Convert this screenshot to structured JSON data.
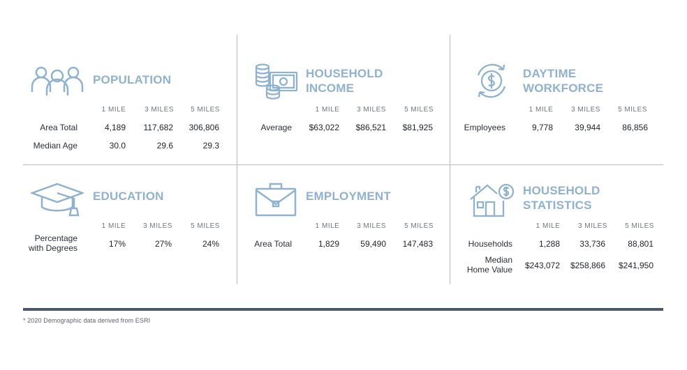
{
  "panels": {
    "population": {
      "title": "POPULATION",
      "icon": "people-group-icon",
      "columns": [
        "1 MILE",
        "3 MILES",
        "5 MILES"
      ],
      "rows": [
        {
          "label": "Area Total",
          "values": [
            "4,189",
            "117,682",
            "306,806"
          ]
        },
        {
          "label": "Median Age",
          "values": [
            "30.0",
            "29.6",
            "29.3"
          ]
        }
      ]
    },
    "household_income": {
      "title": "HOUSEHOLD\nINCOME",
      "icon": "coins-cash-icon",
      "columns": [
        "1 MILE",
        "3 MILES",
        "5 MILES"
      ],
      "rows": [
        {
          "label": "Average",
          "values": [
            "$63,022",
            "$86,521",
            "$81,925"
          ]
        }
      ]
    },
    "daytime_workforce": {
      "title": "DAYTIME\nWORKFORCE",
      "icon": "dollar-cycle-icon",
      "columns": [
        "1 MILE",
        "3 MILES",
        "5 MILES"
      ],
      "rows": [
        {
          "label": "Employees",
          "values": [
            "9,778",
            "39,944",
            "86,856"
          ]
        }
      ]
    },
    "education": {
      "title": "EDUCATION",
      "icon": "graduation-cap-icon",
      "columns": [
        "1 MILE",
        "3 MILES",
        "5 MILES"
      ],
      "rows": [
        {
          "label": "Percentage\nwith Degrees",
          "values": [
            "17%",
            "27%",
            "24%"
          ]
        }
      ]
    },
    "employment": {
      "title": "EMPLOYMENT",
      "icon": "briefcase-icon",
      "columns": [
        "1 MILE",
        "3 MILES",
        "5 MILES"
      ],
      "rows": [
        {
          "label": "Area Total",
          "values": [
            "1,829",
            "59,490",
            "147,483"
          ]
        }
      ]
    },
    "household_statistics": {
      "title": "HOUSEHOLD\nSTATISTICS",
      "icon": "house-dollar-icon",
      "columns": [
        "1 MILE",
        "3 MILES",
        "5 MILES"
      ],
      "rows": [
        {
          "label": "Households",
          "values": [
            "1,288",
            "33,736",
            "88,801"
          ]
        },
        {
          "label": "Median\nHome Value",
          "values": [
            "$243,072",
            "$258,866",
            "$241,950"
          ]
        }
      ]
    }
  },
  "footnote": "* 2020 Demographic data derived from ESRI",
  "colors": {
    "accent": "#8fb2d0",
    "divider": "#b8bcc2",
    "footer_bar": "#4a5869"
  }
}
